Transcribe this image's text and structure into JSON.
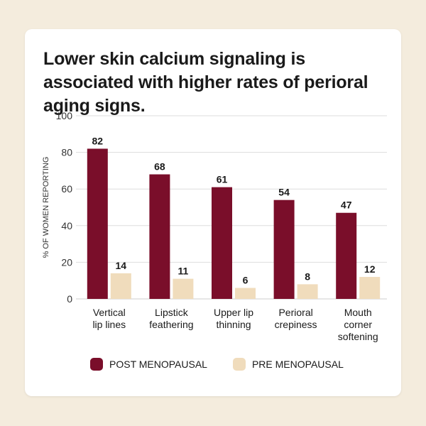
{
  "title": "Lower skin calcium signaling is associated with higher rates of perioral aging signs.",
  "colors": {
    "post": "#7a0e2a",
    "pre": "#f0dcbc",
    "grid": "#dddddd",
    "text": "#1a1a1a"
  },
  "chart_data": {
    "type": "bar",
    "title": "Lower skin calcium signaling is associated with higher rates of perioral aging signs.",
    "xlabel": "",
    "ylabel": "% OF WOMEN REPORTING",
    "ylim": [
      0,
      100
    ],
    "yticks": [
      0,
      20,
      40,
      60,
      80,
      100
    ],
    "grid": true,
    "legend": "bottom",
    "categories": [
      [
        "Vertical",
        "lip lines"
      ],
      [
        "Lipstick",
        "feathering"
      ],
      [
        "Upper lip",
        "thinning"
      ],
      [
        "Perioral",
        "crepiness"
      ],
      [
        "Mouth",
        "corner",
        "softening"
      ]
    ],
    "series": [
      {
        "name": "POST MENOPAUSAL",
        "values": [
          82,
          68,
          61,
          54,
          47
        ]
      },
      {
        "name": "PRE MENOPAUSAL",
        "values": [
          14,
          11,
          6,
          8,
          12
        ]
      }
    ]
  }
}
